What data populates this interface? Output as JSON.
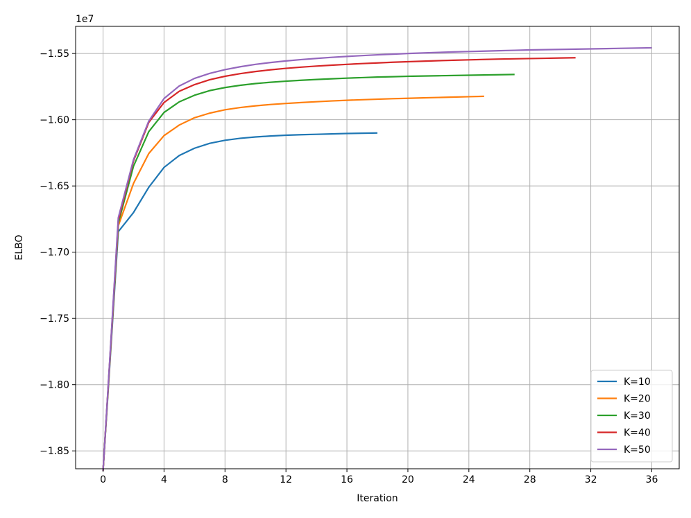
{
  "chart_data": {
    "type": "line",
    "xlabel": "Iteration",
    "ylabel": "ELBO",
    "y_offset_label": "1e7",
    "xlim": [
      -1.8,
      37.8
    ],
    "ylim": [
      -1.8635,
      -1.5295
    ],
    "xticks": [
      0,
      4,
      8,
      12,
      16,
      20,
      24,
      28,
      32,
      36
    ],
    "xtick_labels": [
      "0",
      "4",
      "8",
      "12",
      "16",
      "20",
      "24",
      "28",
      "32",
      "36"
    ],
    "yticks": [
      -1.85,
      -1.8,
      -1.75,
      -1.7,
      -1.65,
      -1.6,
      -1.55
    ],
    "ytick_labels": [
      "−1.85",
      "−1.80",
      "−1.75",
      "−1.70",
      "−1.65",
      "−1.60",
      "−1.55"
    ],
    "grid": true,
    "legend_position": "bottom-right",
    "series": [
      {
        "name": "K=10",
        "color": "#1f77b4",
        "x": [
          0,
          1,
          2,
          3,
          4,
          5,
          6,
          7,
          8,
          9,
          10,
          11,
          12,
          13,
          14,
          15,
          16,
          17,
          18
        ],
        "values": [
          -1.865,
          -1.6845,
          -1.67,
          -1.651,
          -1.636,
          -1.627,
          -1.6215,
          -1.6178,
          -1.6155,
          -1.614,
          -1.613,
          -1.6123,
          -1.6117,
          -1.6113,
          -1.611,
          -1.6107,
          -1.6104,
          -1.6102,
          -1.61
        ]
      },
      {
        "name": "K=20",
        "color": "#ff7f0e",
        "x": [
          0,
          1,
          2,
          3,
          4,
          5,
          6,
          7,
          8,
          9,
          10,
          11,
          12,
          13,
          14,
          15,
          16,
          17,
          18,
          19,
          20,
          21,
          22,
          23,
          24,
          25
        ],
        "values": [
          -1.865,
          -1.68,
          -1.648,
          -1.6255,
          -1.612,
          -1.604,
          -1.5985,
          -1.595,
          -1.5925,
          -1.5908,
          -1.5895,
          -1.5885,
          -1.5877,
          -1.587,
          -1.5864,
          -1.5858,
          -1.5853,
          -1.5849,
          -1.5845,
          -1.5841,
          -1.5838,
          -1.5835,
          -1.5832,
          -1.5829,
          -1.5826,
          -1.5823
        ]
      },
      {
        "name": "K=30",
        "color": "#2ca02c",
        "x": [
          0,
          1,
          2,
          3,
          4,
          5,
          6,
          7,
          8,
          9,
          10,
          11,
          12,
          13,
          14,
          15,
          16,
          17,
          18,
          19,
          20,
          21,
          22,
          23,
          24,
          25,
          26,
          27
        ],
        "values": [
          -1.865,
          -1.678,
          -1.635,
          -1.609,
          -1.5945,
          -1.5865,
          -1.5815,
          -1.578,
          -1.5757,
          -1.574,
          -1.5727,
          -1.5717,
          -1.5709,
          -1.5702,
          -1.5696,
          -1.5691,
          -1.5686,
          -1.5682,
          -1.5678,
          -1.5675,
          -1.5672,
          -1.567,
          -1.5668,
          -1.5666,
          -1.5664,
          -1.5662,
          -1.566,
          -1.5658
        ]
      },
      {
        "name": "K=40",
        "color": "#d62728",
        "x": [
          0,
          1,
          2,
          3,
          4,
          5,
          6,
          7,
          8,
          9,
          10,
          11,
          12,
          13,
          14,
          15,
          16,
          17,
          18,
          19,
          20,
          21,
          22,
          23,
          24,
          25,
          26,
          27,
          28,
          29,
          30,
          31
        ],
        "values": [
          -1.865,
          -1.676,
          -1.631,
          -1.602,
          -1.587,
          -1.5785,
          -1.5735,
          -1.5698,
          -1.5672,
          -1.5652,
          -1.5636,
          -1.5623,
          -1.5612,
          -1.5603,
          -1.5595,
          -1.5588,
          -1.5582,
          -1.5576,
          -1.5571,
          -1.5566,
          -1.5562,
          -1.5558,
          -1.5554,
          -1.5551,
          -1.5548,
          -1.5545,
          -1.5542,
          -1.554,
          -1.5538,
          -1.5536,
          -1.5534,
          -1.5532
        ]
      },
      {
        "name": "K=50",
        "color": "#9467bd",
        "x": [
          0,
          1,
          2,
          3,
          4,
          5,
          6,
          7,
          8,
          9,
          10,
          11,
          12,
          13,
          14,
          15,
          16,
          17,
          18,
          19,
          20,
          21,
          22,
          23,
          24,
          25,
          26,
          27,
          28,
          29,
          30,
          31,
          32,
          33,
          34,
          35,
          36
        ],
        "values": [
          -1.865,
          -1.674,
          -1.63,
          -1.601,
          -1.584,
          -1.5745,
          -1.5688,
          -1.565,
          -1.5622,
          -1.56,
          -1.5582,
          -1.5568,
          -1.5556,
          -1.5546,
          -1.5537,
          -1.5529,
          -1.5522,
          -1.5516,
          -1.551,
          -1.5505,
          -1.55,
          -1.5496,
          -1.5492,
          -1.5488,
          -1.5485,
          -1.5482,
          -1.5479,
          -1.5476,
          -1.5473,
          -1.5471,
          -1.5469,
          -1.5467,
          -1.5465,
          -1.5463,
          -1.5461,
          -1.5459,
          -1.5457
        ]
      }
    ]
  }
}
